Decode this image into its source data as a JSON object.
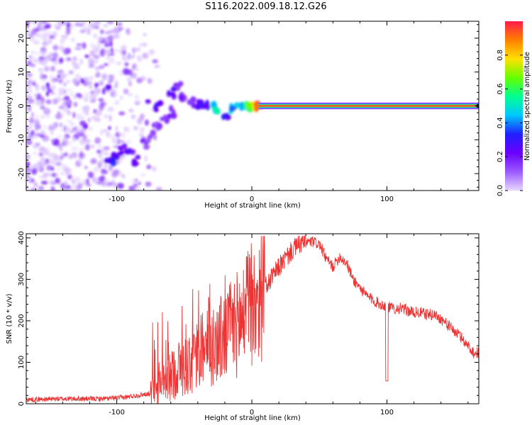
{
  "title": "S116.2022.009.18.12.G26",
  "colors": {
    "snr_line": "#ee3333",
    "colormap": [
      "#e8d8ff",
      "#9b59ff",
      "#6a00ff",
      "#2020ff",
      "#00c8ff",
      "#00ff90",
      "#66ff00",
      "#ffe000",
      "#ff8000",
      "#ff1a4b"
    ]
  },
  "chart_data": [
    {
      "type": "heatmap",
      "xlabel": "Height of straight line (km)",
      "ylabel": "Frequency (Hz)",
      "xlim": [
        -167,
        168
      ],
      "ylim": [
        -25,
        25
      ],
      "xticks": [
        -100,
        0,
        100
      ],
      "yticks": [
        -20,
        -10,
        0,
        10,
        20
      ],
      "colorbar": {
        "label": "Normalized spectral amplitude",
        "range": [
          0,
          1
        ],
        "ticks": [
          "0.0",
          "0.2",
          "0.4",
          "0.6",
          "0.8"
        ]
      },
      "features": {
        "noise_region_x": [
          -167,
          -75
        ],
        "ridge_points": [
          [
            -105,
            -17,
            0.3
          ],
          [
            -100,
            -14,
            0.25
          ],
          [
            -95,
            -13,
            0.2
          ],
          [
            -90,
            -14,
            0.25
          ],
          [
            -85,
            -16,
            0.2
          ],
          [
            -80,
            -11,
            0.15
          ],
          [
            -75,
            -9,
            0.15
          ],
          [
            -70,
            -6,
            0.15
          ],
          [
            -65,
            -4,
            0.15
          ],
          [
            -60,
            -2,
            0.2
          ],
          [
            -70,
            0,
            0.25
          ],
          [
            -60,
            4,
            0.25
          ],
          [
            -55,
            6,
            0.2
          ],
          [
            -50,
            2,
            0.2
          ],
          [
            -45,
            1,
            0.2
          ],
          [
            -40,
            0,
            0.25
          ],
          [
            -35,
            0,
            0.3
          ],
          [
            -30,
            0,
            0.4
          ],
          [
            -25,
            -1,
            0.5
          ],
          [
            -20,
            -3,
            0.3
          ],
          [
            -15,
            -1,
            0.45
          ],
          [
            -10,
            0,
            0.55
          ],
          [
            -5,
            0,
            0.6
          ],
          [
            0,
            0,
            0.7
          ],
          [
            5,
            0,
            0.8
          ]
        ],
        "stable_band": {
          "x": [
            5,
            168
          ],
          "y": 0,
          "peak": 0.95
        }
      }
    },
    {
      "type": "line",
      "xlabel": "Height of straight line (km)",
      "ylabel": "SNR (10 * v/v)",
      "xlim": [
        -167,
        168
      ],
      "ylim": [
        0,
        410
      ],
      "xticks": [
        -100,
        0,
        100
      ],
      "yticks": [
        0,
        100,
        200,
        300,
        400
      ],
      "series": [
        {
          "x": [
            -167,
            -140,
            -110,
            -95,
            -85,
            -75,
            -70,
            -65,
            -60,
            -55,
            -50,
            -45,
            -40,
            -35,
            -30,
            -25,
            -20,
            -15,
            -10,
            -5,
            0,
            5,
            10,
            15,
            20,
            25,
            30,
            35,
            40,
            45,
            50,
            55,
            60,
            65,
            70,
            75,
            80,
            85,
            90,
            95,
            100,
            105,
            110,
            115,
            120,
            125,
            130,
            135,
            140,
            145,
            150,
            155,
            160,
            165,
            168
          ],
          "y": [
            10,
            12,
            12,
            15,
            20,
            25,
            35,
            45,
            65,
            85,
            90,
            100,
            115,
            130,
            140,
            150,
            165,
            180,
            195,
            215,
            235,
            260,
            280,
            305,
            330,
            350,
            370,
            385,
            390,
            390,
            385,
            350,
            330,
            355,
            340,
            300,
            280,
            260,
            250,
            240,
            235,
            230,
            230,
            225,
            220,
            220,
            215,
            215,
            205,
            190,
            175,
            160,
            140,
            120,
            125
          ]
        }
      ]
    }
  ]
}
